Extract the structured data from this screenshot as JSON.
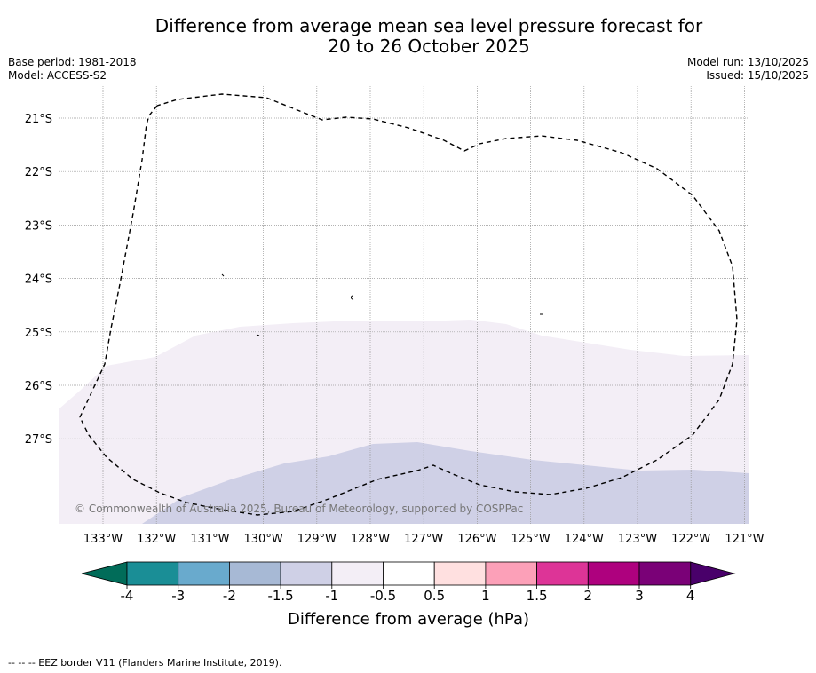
{
  "title_line1": "Difference from average mean sea level pressure forecast for",
  "title_line2": "20 to 26 October 2025",
  "base_period": "Base period: 1981-2018",
  "model": "Model: ACCESS-S2",
  "model_run": "Model run: 13/10/2025",
  "issued": "Issued: 15/10/2025",
  "copyright": "© Commonwealth of Australia 2025, Bureau of Meteorology, supported by COSPPac",
  "lat_labels": [
    "21°S",
    "22°S",
    "23°S",
    "24°S",
    "25°S",
    "26°S",
    "27°S"
  ],
  "lon_labels": [
    "133°W",
    "132°W",
    "131°W",
    "130°W",
    "129°W",
    "128°W",
    "127°W",
    "126°W",
    "125°W",
    "124°W",
    "123°W",
    "122°W",
    "121°W"
  ],
  "colorbar": {
    "label": "Difference from average (hPa)",
    "ticks": [
      "-4",
      "-3",
      "-2",
      "-1.5",
      "-1",
      "-0.5",
      "0.5",
      "1",
      "1.5",
      "2",
      "3",
      "4"
    ],
    "colors": [
      "#1a8e96",
      "#69aacd",
      "#a7b9d5",
      "#cfd0e6",
      "#f3eef6",
      "#ffffff",
      "#ffe0e0",
      "#fca0b8",
      "#dd3497",
      "#ae017e",
      "#7a0177"
    ],
    "low_extend_color": "#016c59",
    "high_extend_color": "#49006a"
  },
  "legend_footer": "--  --  -- EEZ border V11 (Flanders Marine Institute, 2019)."
}
